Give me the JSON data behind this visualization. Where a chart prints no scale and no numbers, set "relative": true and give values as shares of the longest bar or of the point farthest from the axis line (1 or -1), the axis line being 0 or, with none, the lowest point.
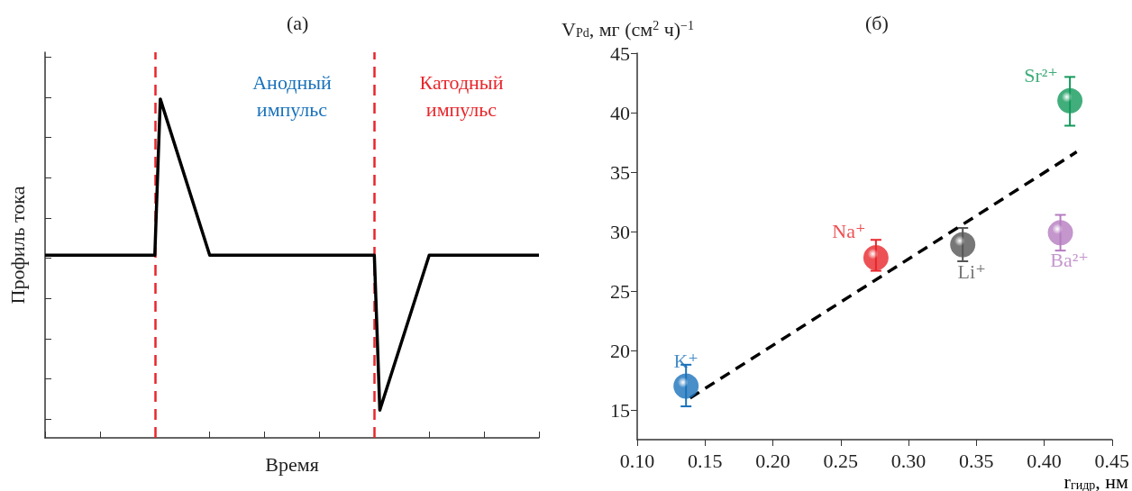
{
  "chart_data": [
    {
      "type": "line",
      "title": "(а)",
      "xlabel": "Время",
      "ylabel": "Профиль тока",
      "relative": true,
      "grid": false,
      "legend": false,
      "marker": "none",
      "categories": [
        null,
        null,
        null,
        null,
        null,
        null,
        null,
        null,
        null,
        null,
        null,
        null,
        null,
        null,
        null,
        null,
        null,
        null,
        null,
        null,
        null,
        null,
        null,
        null,
        null,
        null,
        null,
        null,
        null,
        null,
        null,
        null,
        null,
        null,
        null,
        null,
        null,
        null,
        null,
        null,
        null,
        null,
        null,
        null,
        null,
        null,
        null,
        null,
        null,
        null,
        null,
        null,
        null,
        null,
        null,
        null,
        null,
        null,
        null,
        null,
        null,
        null,
        null,
        null,
        null,
        null,
        null,
        null,
        null,
        null,
        null,
        null,
        null,
        null,
        null,
        null,
        null,
        null,
        null,
        null,
        null,
        null,
        null,
        null,
        null,
        null,
        null,
        null,
        null,
        null,
        null
      ],
      "series": [
        {
          "color": "#000000",
          "line_style": "solid",
          "values": [
            0.539,
            null,
            null,
            null,
            null,
            null,
            null,
            null,
            null,
            null,
            null,
            null,
            null,
            null,
            null,
            null,
            null,
            null,
            null,
            null,
            0.539,
            1,
            null,
            null,
            null,
            null,
            null,
            null,
            null,
            null,
            0.539,
            null,
            null,
            null,
            null,
            null,
            null,
            null,
            null,
            null,
            null,
            null,
            null,
            null,
            null,
            null,
            null,
            null,
            null,
            null,
            null,
            null,
            null,
            null,
            null,
            null,
            null,
            null,
            null,
            null,
            0.539,
            0.082,
            null,
            null,
            null,
            null,
            null,
            null,
            null,
            null,
            0.539,
            null,
            null,
            null,
            null,
            null,
            null,
            null,
            null,
            null,
            null,
            null,
            null,
            null,
            null,
            null,
            null,
            null,
            null,
            null,
            0.539
          ]
        }
      ],
      "annotations": [
        "Анодный импульс",
        "Катодный импульс"
      ]
    },
    {
      "type": "scatter",
      "title": "(б)",
      "xlabel": "r$_{гидр}$, нм",
      "ylabel": "V$_{Pd}$, мг (см$^{2}$ ч)$^{−1}$",
      "grid": false,
      "legend": false,
      "marker": "circle",
      "xlim": [
        0.1,
        0.45
      ],
      "xticks": [
        {
          "value": 0.1,
          "label": "0.10"
        },
        {
          "value": 0.15,
          "label": "0.15"
        },
        {
          "value": 0.2,
          "label": "0.20"
        },
        {
          "value": 0.25,
          "label": "0.25"
        },
        {
          "value": 0.3,
          "label": "0.30"
        },
        {
          "value": 0.35,
          "label": "0.35"
        },
        {
          "value": 0.4,
          "label": "0.40"
        },
        {
          "value": 0.45,
          "label": "0.45"
        }
      ],
      "ylim": [
        12.5,
        45
      ],
      "yticks": [
        15,
        20,
        25,
        30,
        35,
        40,
        45
      ],
      "series": [
        {
          "type": "line",
          "color": "#000000",
          "line_style": "dashed",
          "marker": "none",
          "x": [
            0.139,
            0.424
          ],
          "values": [
            16.0,
            36.7
          ]
        },
        {
          "name": "K⁺",
          "color": "#1a72bb",
          "x": [
            0.136
          ],
          "values": [
            17.0
          ],
          "errors": [
            [
              15.3,
              18.8
            ]
          ]
        },
        {
          "name": "Na⁺",
          "color": "#e8262b",
          "x": [
            0.276
          ],
          "values": [
            27.8
          ],
          "errors": [
            [
              26.7,
              29.3
            ]
          ]
        },
        {
          "name": "Li⁺",
          "color": "#555555",
          "x": [
            0.34
          ],
          "values": [
            28.9
          ],
          "errors": [
            [
              27.5,
              30.3
            ]
          ]
        },
        {
          "name": "Ba²⁺",
          "color": "#b57cc0",
          "x": [
            0.412
          ],
          "values": [
            29.9
          ],
          "errors": [
            [
              28.4,
              31.4
            ]
          ]
        },
        {
          "name": "Sr²⁺",
          "color": "#12995a",
          "x": [
            0.419
          ],
          "values": [
            41.0
          ],
          "errors": [
            [
              38.9,
              43.0
            ]
          ]
        }
      ]
    }
  ]
}
